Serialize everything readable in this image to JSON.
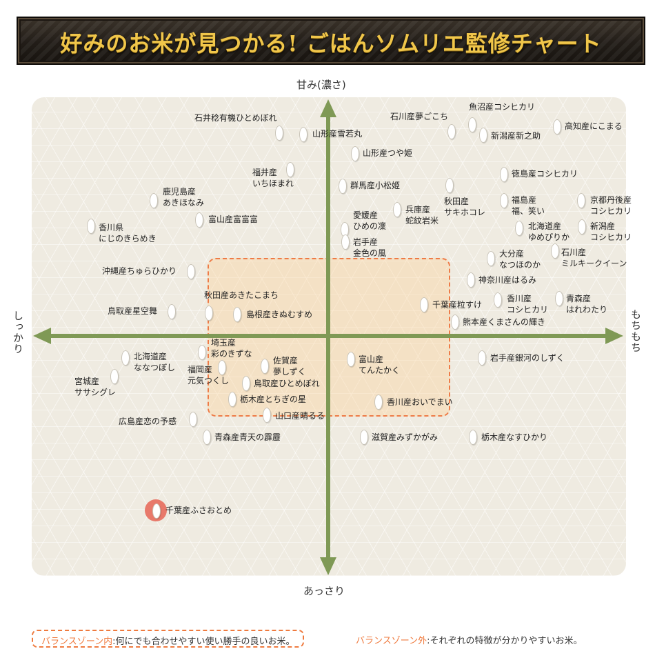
{
  "title": "好みのお米が見つかる! ごはんソムリエ監修チャート",
  "axes": {
    "top": "甘み(濃さ)",
    "bottom": "あっさり",
    "left": "しっかり",
    "right": "もちもち"
  },
  "colors": {
    "axis": "#7f9955",
    "zone_border": "#ee7b47",
    "zone_fill": "#fad4a0",
    "highlight": "#e8796a",
    "title": "#f0c64a"
  },
  "rice": [
    {
      "label": "魚沼産コシヒカリ"
    },
    {
      "label": "石川産夢ごこち"
    },
    {
      "label": "石井稔有機ひとめぼれ"
    },
    {
      "label": "高知産にこまる"
    },
    {
      "label": "山形産雪若丸"
    },
    {
      "label": "新潟産新之助"
    },
    {
      "label": "山形産つや姫"
    },
    {
      "label": "徳島産コシヒカリ"
    },
    {
      "label": "福井産\nいちほまれ"
    },
    {
      "label": "群馬産小松姫"
    },
    {
      "label": "鹿児島産\nあきほなみ"
    },
    {
      "label": "兵庫産\n蛇紋岩米"
    },
    {
      "label": "秋田産\nサキホコレ"
    },
    {
      "label": "福島産\n福、笑い"
    },
    {
      "label": "京都丹後産\nコシヒカリ"
    },
    {
      "label": "愛媛産\nひめの凜"
    },
    {
      "label": "富山産富富富"
    },
    {
      "label": "香川県\nにじのきらめき"
    },
    {
      "label": "北海道産\nゆめぴりか"
    },
    {
      "label": "新潟産\nコシヒカリ"
    },
    {
      "label": "岩手産\n金色の風"
    },
    {
      "label": "石川産\nミルキークイーン"
    },
    {
      "label": "大分産\nなつほのか"
    },
    {
      "label": "沖縄産ちゅらひかり"
    },
    {
      "label": "神奈川産はるみ"
    },
    {
      "label": "秋田産あきたこまち"
    },
    {
      "label": "香川産\nコシヒカリ"
    },
    {
      "label": "青森産\nはれわたり"
    },
    {
      "label": "千葉産粒すけ"
    },
    {
      "label": "鳥取産星空舞"
    },
    {
      "label": "島根産きぬむすめ"
    },
    {
      "label": "熊本産くまさんの輝き"
    },
    {
      "label": "埼玉産\n彩のきずな"
    },
    {
      "label": "北海道産\nななつぼし"
    },
    {
      "label": "佐賀産\n夢しずく"
    },
    {
      "label": "富山産\nてんたかく"
    },
    {
      "label": "岩手産銀河のしずく"
    },
    {
      "label": "福岡産\n元気つくし"
    },
    {
      "label": "宮城産\nササシグレ"
    },
    {
      "label": "鳥取産ひとめぼれ"
    },
    {
      "label": "栃木産とちぎの星"
    },
    {
      "label": "香川産おいでまい"
    },
    {
      "label": "山口産晴るる"
    },
    {
      "label": "広島産恋の予感"
    },
    {
      "label": "青森産青天の霹靂"
    },
    {
      "label": "滋賀産みずかがみ"
    },
    {
      "label": "栃木産なすひかり"
    },
    {
      "label": "千葉産ふさおとめ"
    }
  ],
  "legend": {
    "inside_label": "バランスゾーン内",
    "inside_text": ":何にでも合わせやすい使い勝手の良いお米。",
    "outside_label": "バランスゾーン外",
    "outside_text": ":それぞれの特徴が分かりやすいお米。"
  }
}
